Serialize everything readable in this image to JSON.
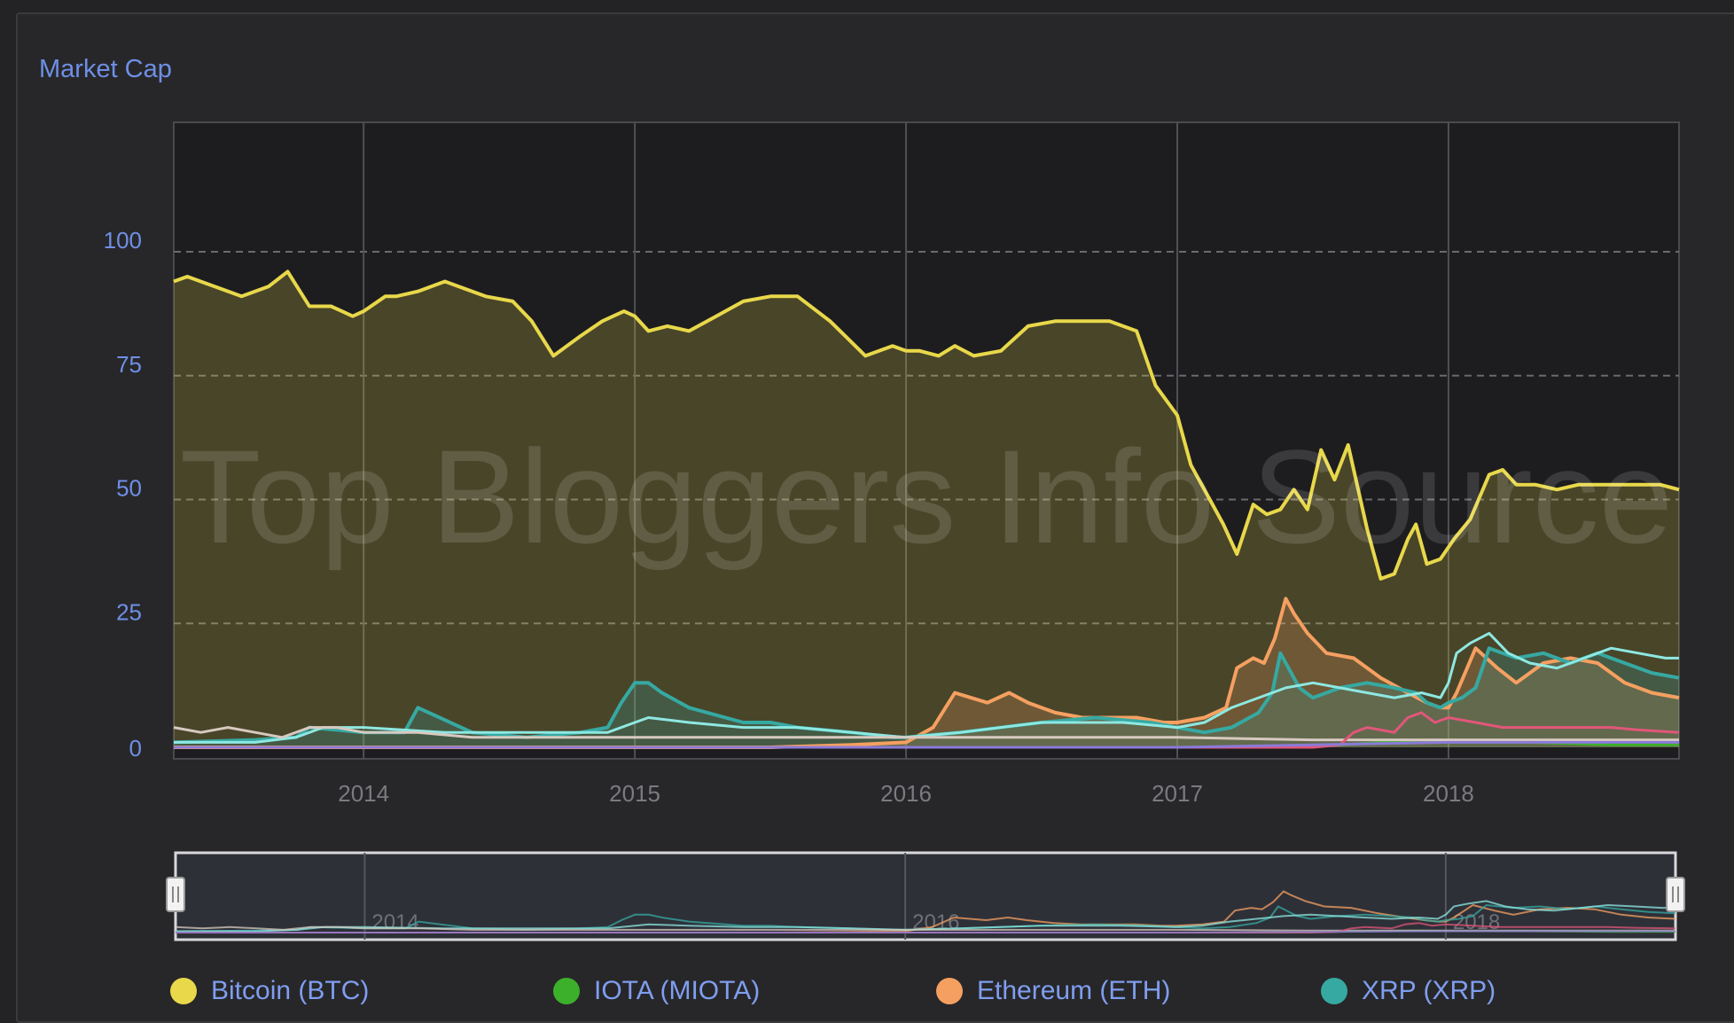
{
  "chart_data": {
    "type": "area",
    "title": "Market Cap",
    "watermark": "Top Bloggers Info Source",
    "y_ticks": [
      "0",
      "25",
      "50",
      "75",
      "100"
    ],
    "x_ticks": [
      "2014",
      "2015",
      "2016",
      "2017",
      "2018"
    ],
    "navigator_ticks": [
      "2014",
      "2016",
      "2018"
    ],
    "x_range": [
      2013.3,
      2018.85
    ],
    "ylim": [
      -2,
      125
    ],
    "grid": true,
    "legend_position": "bottom",
    "series": [
      {
        "name": "Bitcoin (BTC)",
        "color": "#e8d84a",
        "fill": true,
        "x": [
          2013.3,
          2013.35,
          2013.45,
          2013.55,
          2013.65,
          2013.72,
          2013.8,
          2013.88,
          2013.92,
          2013.96,
          2014.0,
          2014.08,
          2014.12,
          2014.2,
          2014.3,
          2014.45,
          2014.55,
          2014.62,
          2014.7,
          2014.8,
          2014.88,
          2014.92,
          2014.96,
          2015.0,
          2015.05,
          2015.12,
          2015.2,
          2015.3,
          2015.4,
          2015.5,
          2015.6,
          2015.72,
          2015.85,
          2015.95,
          2016.0,
          2016.05,
          2016.12,
          2016.18,
          2016.25,
          2016.35,
          2016.45,
          2016.55,
          2016.65,
          2016.75,
          2016.85,
          2016.92,
          2017.0,
          2017.05,
          2017.12,
          2017.17,
          2017.22,
          2017.28,
          2017.33,
          2017.38,
          2017.43,
          2017.48,
          2017.53,
          2017.58,
          2017.63,
          2017.7,
          2017.75,
          2017.8,
          2017.85,
          2017.88,
          2017.92,
          2017.97,
          2018.02,
          2018.08,
          2018.15,
          2018.2,
          2018.25,
          2018.32,
          2018.4,
          2018.48,
          2018.55,
          2018.6,
          2018.66,
          2018.72,
          2018.78,
          2018.85
        ],
        "values": [
          94,
          95,
          93,
          91,
          93,
          96,
          89,
          89,
          88,
          87,
          88,
          91,
          91,
          92,
          94,
          91,
          90,
          86,
          79,
          83,
          86,
          87,
          88,
          87,
          84,
          85,
          84,
          87,
          90,
          91,
          91,
          86,
          79,
          81,
          80,
          80,
          79,
          81,
          79,
          80,
          85,
          86,
          86,
          86,
          84,
          73,
          67,
          57,
          50,
          45,
          39,
          49,
          47,
          48,
          52,
          48,
          60,
          54,
          61,
          44,
          34,
          35,
          42,
          45,
          37,
          38,
          42,
          46,
          55,
          56,
          53,
          53,
          52,
          53,
          53,
          53,
          53,
          53,
          53,
          52
        ]
      },
      {
        "name": "Ethereum (ETH)",
        "color": "#f5a061",
        "fill": true,
        "x": [
          2013.3,
          2015.5,
          2015.8,
          2016.0,
          2016.1,
          2016.18,
          2016.3,
          2016.38,
          2016.45,
          2016.55,
          2016.65,
          2016.75,
          2016.85,
          2016.95,
          2017.0,
          2017.1,
          2017.18,
          2017.22,
          2017.28,
          2017.32,
          2017.36,
          2017.4,
          2017.43,
          2017.48,
          2017.55,
          2017.65,
          2017.75,
          2017.85,
          2017.92,
          2017.97,
          2018.0,
          2018.03,
          2018.1,
          2018.18,
          2018.25,
          2018.35,
          2018.45,
          2018.55,
          2018.65,
          2018.75,
          2018.85
        ],
        "values": [
          0,
          0,
          0.5,
          1,
          4,
          11,
          9,
          11,
          9,
          7,
          6,
          6,
          6,
          5,
          5,
          6,
          8,
          16,
          18,
          17,
          22,
          30,
          27,
          23,
          19,
          18,
          14,
          11,
          9,
          8,
          8,
          11,
          20,
          16,
          13,
          17,
          18,
          17,
          13,
          11,
          10
        ]
      },
      {
        "name": "XRP (XRP)",
        "color": "#36a9a2",
        "fill": true,
        "x": [
          2013.3,
          2013.6,
          2013.75,
          2013.8,
          2014.0,
          2014.15,
          2014.2,
          2014.4,
          2014.6,
          2014.8,
          2014.9,
          2014.95,
          2015.0,
          2015.05,
          2015.1,
          2015.2,
          2015.4,
          2015.5,
          2015.6,
          2015.8,
          2015.95,
          2016.0,
          2016.2,
          2016.5,
          2016.7,
          2016.9,
          2017.0,
          2017.1,
          2017.2,
          2017.3,
          2017.35,
          2017.38,
          2017.45,
          2017.5,
          2017.6,
          2017.7,
          2017.8,
          2017.88,
          2017.92,
          2017.97,
          2018.0,
          2018.05,
          2018.1,
          2018.15,
          2018.25,
          2018.35,
          2018.45,
          2018.55,
          2018.65,
          2018.75,
          2018.85
        ],
        "values": [
          1,
          1.5,
          2,
          4,
          3,
          3,
          8,
          3,
          2,
          3,
          4,
          9,
          13,
          13,
          11,
          8,
          5,
          5,
          4,
          3,
          2,
          2,
          3,
          5,
          6,
          5,
          4,
          3,
          4,
          7,
          11,
          19,
          12,
          10,
          12,
          13,
          12,
          11,
          9,
          8,
          9,
          10,
          12,
          20,
          18,
          19,
          17,
          19,
          17,
          15,
          14
        ]
      },
      {
        "name": "IOTA (MIOTA)",
        "color": "#3cb02b",
        "fill": false,
        "x": [
          2013.3,
          2017.45,
          2017.6,
          2017.9,
          2018.0,
          2018.3,
          2018.6,
          2018.85
        ],
        "values": [
          0,
          0,
          0.5,
          1.5,
          1,
          1,
          0.5,
          0.5
        ]
      },
      {
        "name": "",
        "color": "#8ee8e2",
        "fill": false,
        "x": [
          2013.3,
          2013.6,
          2013.75,
          2013.85,
          2014.0,
          2014.3,
          2014.6,
          2014.9,
          2015.0,
          2015.05,
          2015.2,
          2015.4,
          2015.6,
          2015.8,
          2016.0,
          2016.2,
          2016.5,
          2016.8,
          2017.0,
          2017.1,
          2017.2,
          2017.3,
          2017.4,
          2017.5,
          2017.6,
          2017.7,
          2017.8,
          2017.9,
          2017.97,
          2018.0,
          2018.03,
          2018.08,
          2018.15,
          2018.22,
          2018.3,
          2018.4,
          2018.5,
          2018.6,
          2018.7,
          2018.8,
          2018.85
        ],
        "values": [
          1,
          1,
          2,
          4,
          4,
          3,
          3,
          3,
          5,
          6,
          5,
          4,
          4,
          3,
          2,
          3,
          5,
          5,
          4,
          5,
          8,
          10,
          12,
          13,
          12,
          11,
          10,
          11,
          10,
          13,
          19,
          21,
          23,
          19,
          17,
          16,
          18,
          20,
          19,
          18,
          18
        ]
      },
      {
        "name": "",
        "color": "#d8c9c0",
        "fill": false,
        "x": [
          2013.3,
          2013.4,
          2013.5,
          2013.6,
          2013.7,
          2013.8,
          2013.9,
          2014.0,
          2014.2,
          2014.4,
          2014.6,
          2014.8,
          2015.0,
          2015.5,
          2016.0,
          2016.5,
          2017.0,
          2017.5,
          2018.0,
          2018.5,
          2018.85
        ],
        "values": [
          4,
          3,
          4,
          3,
          2,
          4,
          4,
          3,
          3,
          2,
          2,
          2,
          2,
          2,
          2,
          2,
          2,
          1.5,
          1.5,
          1.5,
          1.5
        ]
      },
      {
        "name": "",
        "color": "#e2567a",
        "fill": false,
        "x": [
          2013.3,
          2017.5,
          2017.6,
          2017.65,
          2017.7,
          2017.8,
          2017.85,
          2017.9,
          2017.95,
          2018.0,
          2018.1,
          2018.2,
          2018.3,
          2018.4,
          2018.5,
          2018.6,
          2018.7,
          2018.85
        ],
        "values": [
          0,
          0,
          0.5,
          3,
          4,
          3,
          6,
          7,
          5,
          6,
          5,
          4,
          4,
          4,
          4,
          4,
          3.5,
          3
        ]
      },
      {
        "name": "",
        "color": "#8b7ad8",
        "fill": false,
        "x": [
          2013.3,
          2017.0,
          2017.5,
          2018.0,
          2018.5,
          2018.85
        ],
        "values": [
          0,
          0,
          0.5,
          1,
          1,
          1
        ]
      }
    ]
  },
  "legend": [
    {
      "label": "Bitcoin (BTC)",
      "color": "#e8d84a"
    },
    {
      "label": "IOTA (MIOTA)",
      "color": "#3cb02b"
    },
    {
      "label": "Ethereum (ETH)",
      "color": "#f5a061"
    },
    {
      "label": "XRP (XRP)",
      "color": "#36a9a2"
    }
  ]
}
